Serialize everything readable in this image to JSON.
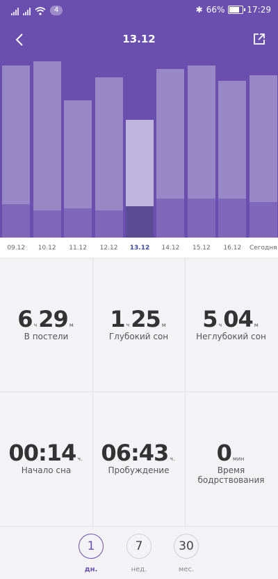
{
  "status_bar": {
    "notification_count": "4",
    "battery": "66%",
    "time": "17:29"
  },
  "header": {
    "title": "13.12",
    "back_icon": "chevron-left-icon",
    "share_icon": "share-icon"
  },
  "chart_data": {
    "type": "bar",
    "categories": [
      "09.12",
      "10.12",
      "11.12",
      "12.12",
      "13.12",
      "14.12",
      "15.12",
      "16.12",
      "Сегодня"
    ],
    "selected": "13.12",
    "series": [
      {
        "values": [
          0.88,
          0.9,
          0.7,
          0.82,
          0.6,
          0.86,
          0.88,
          0.8,
          0.83
        ]
      },
      {
        "values": [
          0.17,
          0.14,
          0.15,
          0.14,
          0.16,
          0.2,
          0.2,
          0.2,
          0.18
        ]
      }
    ],
    "ylim": [
      0,
      1
    ]
  },
  "stats": [
    {
      "parts": [
        {
          "n": "6",
          "u": "ч"
        },
        {
          "n": "29",
          "u": "м"
        }
      ],
      "label": "В постели"
    },
    {
      "parts": [
        {
          "n": "1",
          "u": "ч"
        },
        {
          "n": "25",
          "u": "м"
        }
      ],
      "label": "Глубокий сон"
    },
    {
      "parts": [
        {
          "n": "5",
          "u": "ч"
        },
        {
          "n": "04",
          "u": "м"
        }
      ],
      "label": "Неглубокий сон"
    },
    {
      "parts": [
        {
          "n": "00:14",
          "u": "ч."
        }
      ],
      "label": "Начало сна"
    },
    {
      "parts": [
        {
          "n": "06:43",
          "u": "ч."
        }
      ],
      "label": "Пробуждение"
    },
    {
      "parts": [
        {
          "n": "0",
          "u": "мин"
        }
      ],
      "label": "Время бодрствования"
    }
  ],
  "period_tabs": [
    {
      "value": "1",
      "label": "дн.",
      "active": true
    },
    {
      "value": "7",
      "label": "нед.",
      "active": false
    },
    {
      "value": "30",
      "label": "мес.",
      "active": false
    }
  ],
  "colors": {
    "accent": "#6a4fae",
    "deep_sleep": "#5b4a94"
  }
}
